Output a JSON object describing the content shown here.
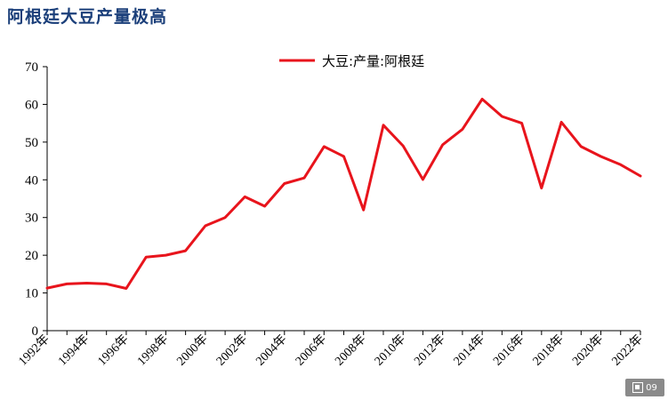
{
  "header": {
    "title": "阿根廷大豆产量极高"
  },
  "badge": {
    "icon": "image-icon",
    "text": "09"
  },
  "chart_data": {
    "type": "line",
    "title": "",
    "xlabel": "",
    "ylabel": "",
    "ylim": [
      0,
      70
    ],
    "yticks": [
      0,
      10,
      20,
      30,
      40,
      50,
      60,
      70
    ],
    "xtick_labels": [
      "1992年",
      "1994年",
      "1996年",
      "1998年",
      "2000年",
      "2002年",
      "2004年",
      "2006年",
      "2008年",
      "2010年",
      "2012年",
      "2014年",
      "2016年",
      "2018年",
      "2020年",
      "2022年"
    ],
    "legend": "top-center",
    "grid": false,
    "x": [
      1992,
      1993,
      1994,
      1995,
      1996,
      1997,
      1998,
      1999,
      2000,
      2001,
      2002,
      2003,
      2004,
      2005,
      2006,
      2007,
      2008,
      2009,
      2010,
      2011,
      2012,
      2013,
      2014,
      2015,
      2016,
      2017,
      2018,
      2019,
      2020,
      2021,
      2022
    ],
    "series": [
      {
        "name": "大豆:产量:阿根廷",
        "color": "#e8141c",
        "values": [
          11.3,
          12.4,
          12.6,
          12.4,
          11.2,
          19.5,
          20.0,
          21.2,
          27.8,
          30.0,
          35.5,
          33.0,
          39.0,
          40.5,
          48.8,
          46.2,
          32.0,
          54.5,
          49.0,
          40.1,
          49.3,
          53.4,
          61.4,
          56.8,
          55.0,
          37.8,
          55.3,
          48.8,
          46.2,
          44.0,
          41.0
        ]
      }
    ]
  }
}
